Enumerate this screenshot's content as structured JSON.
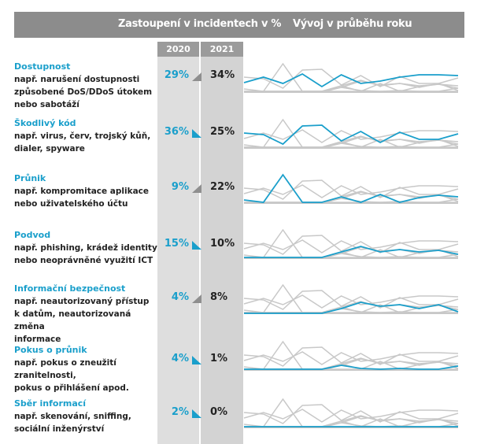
{
  "header": {
    "share_title": "Zastoupení v incidentech v %",
    "trend_title": "Vývoj v průběhu roku"
  },
  "years": [
    "2020",
    "2021"
  ],
  "colors": {
    "accent": "#1a9fcb",
    "other": "#c8c8c8",
    "header": "#8c8c8c"
  },
  "rows": [
    {
      "title": "Dostupnost",
      "desc": [
        "např. narušení dostupnosti",
        "způsobené DoS/DDoS útokem",
        "nebo sabotáží"
      ],
      "v2020": "29%",
      "v2021": "34%",
      "trend": "up"
    },
    {
      "title": "Škodlivý kód",
      "desc": [
        "např. virus, červ, trojský kůň,",
        "dialer, spyware"
      ],
      "v2020": "36%",
      "v2021": "25%",
      "trend": "down"
    },
    {
      "title": "Průnik",
      "desc": [
        "např. kompromitace aplikace",
        "nebo uživatelského účtu"
      ],
      "v2020": "9%",
      "v2021": "22%",
      "trend": "up"
    },
    {
      "title": "Podvod",
      "desc": [
        "např. phishing, krádež identity",
        "nebo neoprávněné využití ICT"
      ],
      "v2020": "15%",
      "v2021": "10%",
      "trend": "down"
    },
    {
      "title": "Informační bezpečnost",
      "desc": [
        "např. neautorizovaný přístup",
        "k datům, neautorizovaná změna",
        "informace"
      ],
      "v2020": "4%",
      "v2021": "8%",
      "trend": "up"
    },
    {
      "title": "Pokus o průnik",
      "desc": [
        "např. pokus o zneužití zranitelnosti,",
        "pokus o přihlášení apod."
      ],
      "v2020": "4%",
      "v2021": "1%",
      "trend": "down"
    },
    {
      "title": "Sběr informací",
      "desc": [
        "např. skenování, sniffing,",
        "sociální inženýrství"
      ],
      "v2020": "2%",
      "v2021": "0%",
      "trend": "down"
    }
  ],
  "chart_data": {
    "type": "line",
    "title": "Vývoj v průběhu roku",
    "x": [
      1,
      2,
      3,
      4,
      5,
      6,
      7,
      8,
      9,
      10,
      11,
      12
    ],
    "ylim": [
      0,
      40
    ],
    "series": [
      {
        "name": "Dostupnost",
        "values": [
          12,
          19,
          11,
          23,
          7,
          22,
          11,
          14,
          19,
          22,
          22,
          21
        ]
      },
      {
        "name": "Škodlivý kód",
        "values": [
          19,
          17,
          5,
          28,
          29,
          9,
          21,
          7,
          20,
          11,
          11,
          18
        ]
      },
      {
        "name": "Průnik",
        "values": [
          4,
          1,
          36,
          1,
          1,
          8,
          1,
          11,
          1,
          7,
          10,
          8
        ]
      },
      {
        "name": "Podvod",
        "values": [
          1,
          1,
          1,
          1,
          1,
          8,
          15,
          8,
          11,
          8,
          10,
          5
        ]
      },
      {
        "name": "Informační bezpečnost",
        "values": [
          0,
          0,
          0,
          0,
          0,
          6,
          14,
          9,
          11,
          6,
          11,
          2
        ]
      },
      {
        "name": "Pokus o průnik",
        "values": [
          1,
          1,
          1,
          1,
          1,
          6,
          2,
          1,
          2,
          1,
          1,
          5
        ]
      },
      {
        "name": "Sběr informací",
        "values": [
          1,
          1,
          1,
          1,
          1,
          1,
          1,
          1,
          1,
          1,
          1,
          1
        ]
      }
    ]
  }
}
